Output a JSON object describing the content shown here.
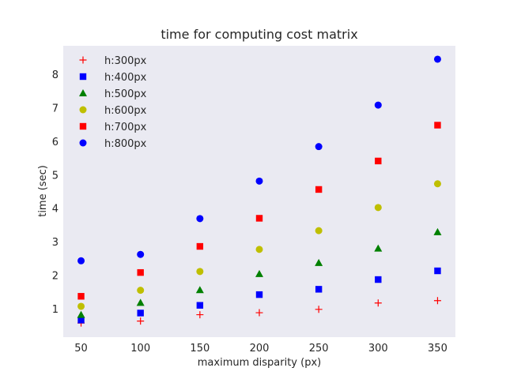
{
  "chart_data": {
    "type": "scatter",
    "title": "time for computing cost matrix",
    "xlabel": "maximum disparity (px)",
    "ylabel": "time (sec)",
    "x": [
      50,
      100,
      150,
      200,
      250,
      300,
      350
    ],
    "xticks": [
      50,
      100,
      150,
      200,
      250,
      300,
      350
    ],
    "yticks": [
      1,
      2,
      3,
      4,
      5,
      6,
      7,
      8
    ],
    "xlim": [
      35,
      365
    ],
    "ylim": [
      0.15,
      8.85
    ],
    "grid": false,
    "background_color": "#eaeaf2",
    "legend_position": "top-left",
    "series": [
      {
        "name": "h:300px",
        "marker": "plus",
        "color": "#ff0000",
        "values": [
          0.57,
          0.63,
          0.82,
          0.88,
          0.98,
          1.17,
          1.24
        ]
      },
      {
        "name": "h:400px",
        "marker": "square",
        "color": "#0000ff",
        "values": [
          0.66,
          0.87,
          1.1,
          1.42,
          1.58,
          1.87,
          2.13
        ]
      },
      {
        "name": "h:500px",
        "marker": "triangle",
        "color": "#008000",
        "values": [
          0.82,
          1.18,
          1.56,
          2.04,
          2.37,
          2.8,
          3.29
        ]
      },
      {
        "name": "h:600px",
        "marker": "circle",
        "color": "#bfbf00",
        "values": [
          1.07,
          1.55,
          2.11,
          2.77,
          3.33,
          4.02,
          4.73
        ]
      },
      {
        "name": "h:700px",
        "marker": "square",
        "color": "#ff0000",
        "values": [
          1.37,
          2.08,
          2.86,
          3.7,
          4.56,
          5.41,
          6.48
        ]
      },
      {
        "name": "h:800px",
        "marker": "circle",
        "color": "#0000ff",
        "values": [
          2.43,
          2.62,
          3.69,
          4.81,
          5.84,
          7.08,
          8.45
        ]
      }
    ]
  }
}
